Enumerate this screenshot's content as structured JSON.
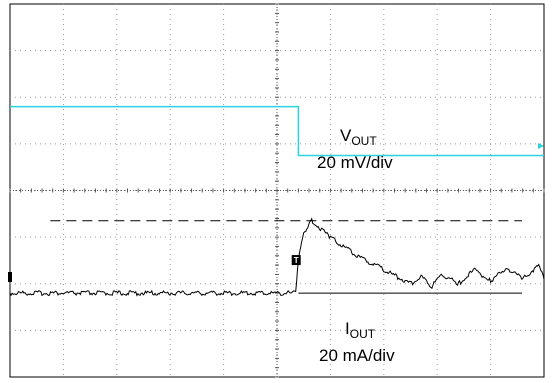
{
  "chart_data": {
    "type": "line",
    "title": "",
    "grid": true,
    "grid_divisions": {
      "x": 10,
      "y": 8
    },
    "trigger_marker": "T",
    "channels": [
      {
        "id": "vout",
        "label_main": "V",
        "label_sub": "OUT",
        "scale": "20 mV/div",
        "color": "#2ad3e0",
        "x": [
          0,
          5.4,
          5.4,
          10
        ],
        "y_div": [
          5.8,
          5.8,
          4.75,
          4.75
        ]
      },
      {
        "id": "iout",
        "label_main": "I",
        "label_sub": "OUT",
        "scale": "20 mA/div",
        "color": "#000000",
        "x": [
          0,
          5.35,
          5.4,
          5.5,
          5.65,
          6.0,
          6.5,
          7.0,
          7.5,
          7.7,
          7.9,
          8.1,
          8.4,
          8.7,
          9.0,
          9.3,
          9.6,
          9.9,
          10
        ],
        "y_div": [
          1.8,
          1.8,
          2.5,
          3.1,
          3.35,
          3.0,
          2.6,
          2.3,
          2.0,
          2.15,
          1.95,
          2.2,
          2.0,
          2.3,
          2.05,
          2.35,
          2.1,
          2.4,
          2.1
        ]
      }
    ],
    "reference_lines": [
      {
        "style": "dashed",
        "y_div": 3.35,
        "x_from": 0.25,
        "x_to": 10
      },
      {
        "style": "solid",
        "y_div": 1.8,
        "x_from": 5.4,
        "x_to": 10
      }
    ]
  }
}
